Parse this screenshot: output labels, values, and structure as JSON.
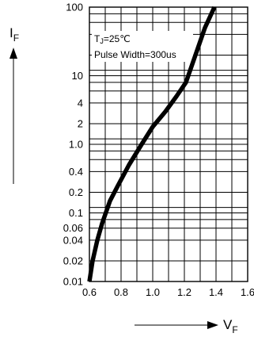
{
  "chart_data": {
    "type": "line",
    "xscale": "linear",
    "yscale": "log",
    "xlim": [
      0.6,
      1.6
    ],
    "ylim": [
      0.01,
      100
    ],
    "xticks": [
      {
        "value": 0.6,
        "label": "0.6"
      },
      {
        "value": 0.8,
        "label": "0.8"
      },
      {
        "value": 1.0,
        "label": "1.0"
      },
      {
        "value": 1.2,
        "label": "1.2"
      },
      {
        "value": 1.4,
        "label": "1.4"
      },
      {
        "value": 1.6,
        "label": "1.6"
      }
    ],
    "yticks": [
      {
        "value": 0.01,
        "label": "0.01"
      },
      {
        "value": 0.02,
        "label": "0.02"
      },
      {
        "value": 0.04,
        "label": "0.04"
      },
      {
        "value": 0.06,
        "label": "0.06"
      },
      {
        "value": 0.1,
        "label": "0.1"
      },
      {
        "value": 0.2,
        "label": "0.2"
      },
      {
        "value": 0.4,
        "label": "0.4"
      },
      {
        "value": 1.0,
        "label": "1.0"
      },
      {
        "value": 2,
        "label": "2"
      },
      {
        "value": 4,
        "label": "4"
      },
      {
        "value": 10,
        "label": "10"
      },
      {
        "value": 100,
        "label": "100"
      }
    ],
    "xgrid": [
      0.7,
      0.8,
      0.9,
      1.0,
      1.1,
      1.2,
      1.3,
      1.4,
      1.5
    ],
    "ygrid": [
      0.02,
      0.04,
      0.06,
      0.08,
      0.1,
      0.12,
      0.2,
      0.4,
      0.6,
      0.8,
      1,
      1.2,
      2,
      4,
      6,
      8,
      10,
      12,
      20,
      40,
      60,
      80
    ],
    "ylabel": {
      "main": "I",
      "sub": "F"
    },
    "xlabel": {
      "main": "V",
      "sub": "F"
    },
    "annotations": {
      "tj": {
        "main": "T",
        "sub": "J",
        "rest": "=25℃"
      },
      "pulse": "Pulse Width=300us"
    },
    "series": [
      {
        "color": "#000000",
        "x": [
          0.6,
          0.62,
          0.65,
          0.68,
          0.73,
          0.78,
          0.85,
          0.93,
          1.0,
          1.08,
          1.15,
          1.21,
          1.27,
          1.33,
          1.39
        ],
        "y": [
          0.01,
          0.02,
          0.04,
          0.07,
          0.15,
          0.25,
          0.5,
          1.0,
          1.8,
          3.0,
          5.0,
          8.0,
          20,
          50,
          100
        ]
      }
    ]
  }
}
